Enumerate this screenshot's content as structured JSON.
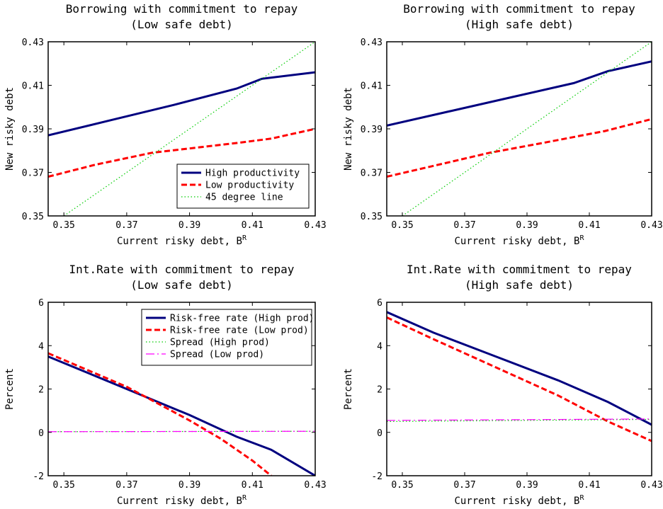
{
  "chart_data": [
    {
      "type": "line",
      "title": [
        "Borrowing with commitment to repay",
        "(Low safe debt)"
      ],
      "xlabel": "Current risky debt, B",
      "xlabel_sup": "R",
      "ylabel": "New risky debt",
      "xlim": [
        0.345,
        0.43
      ],
      "ylim": [
        0.35,
        0.43
      ],
      "xticks": [
        "0.35",
        "0.37",
        "0.39",
        "0.41",
        "0.43"
      ],
      "yticks": [
        "0.35",
        "0.37",
        "0.39",
        "0.41",
        "0.43"
      ],
      "legend": "bottom-right",
      "series": [
        {
          "name": "High productivity",
          "color": "#00007f",
          "style": "solid",
          "x": [
            0.345,
            0.365,
            0.385,
            0.405,
            0.413,
            0.43
          ],
          "y": [
            0.387,
            0.394,
            0.401,
            0.4085,
            0.413,
            0.416
          ]
        },
        {
          "name": "Low productivity",
          "color": "#ff0000",
          "style": "dashed",
          "x": [
            0.345,
            0.36,
            0.378,
            0.39,
            0.405,
            0.416,
            0.43
          ],
          "y": [
            0.368,
            0.3735,
            0.379,
            0.381,
            0.3835,
            0.3855,
            0.39
          ]
        },
        {
          "name": "45 degree line",
          "color": "#00cc00",
          "style": "dotted",
          "x": [
            0.35,
            0.43
          ],
          "y": [
            0.35,
            0.43
          ]
        }
      ]
    },
    {
      "type": "line",
      "title": [
        "Borrowing with commitment to repay",
        "(High safe debt)"
      ],
      "xlabel": "Current risky debt, B",
      "xlabel_sup": "R",
      "ylabel": "New risky debt",
      "xlim": [
        0.345,
        0.43
      ],
      "ylim": [
        0.35,
        0.43
      ],
      "xticks": [
        "0.35",
        "0.37",
        "0.39",
        "0.41",
        "0.43"
      ],
      "yticks": [
        "0.35",
        "0.37",
        "0.39",
        "0.41",
        "0.43"
      ],
      "legend": "none",
      "series": [
        {
          "name": "High productivity",
          "color": "#00007f",
          "style": "solid",
          "x": [
            0.345,
            0.365,
            0.385,
            0.405,
            0.416,
            0.43
          ],
          "y": [
            0.3915,
            0.398,
            0.4045,
            0.411,
            0.4165,
            0.421
          ]
        },
        {
          "name": "Low productivity",
          "color": "#ff0000",
          "style": "dashed",
          "x": [
            0.345,
            0.36,
            0.378,
            0.395,
            0.415,
            0.43
          ],
          "y": [
            0.368,
            0.373,
            0.379,
            0.3835,
            0.389,
            0.3945
          ]
        },
        {
          "name": "45 degree line",
          "color": "#00cc00",
          "style": "dotted",
          "x": [
            0.35,
            0.43
          ],
          "y": [
            0.35,
            0.43
          ]
        }
      ]
    },
    {
      "type": "line",
      "title": [
        "Int.Rate with commitment to repay",
        "(Low safe debt)"
      ],
      "xlabel": "Current risky debt, B",
      "xlabel_sup": "R",
      "ylabel": "Percent",
      "xlim": [
        0.345,
        0.43
      ],
      "ylim": [
        -2,
        6
      ],
      "xticks": [
        "0.35",
        "0.37",
        "0.39",
        "0.41",
        "0.43"
      ],
      "yticks": [
        "-2",
        "0",
        "2",
        "4",
        "6"
      ],
      "legend": "top-right",
      "series": [
        {
          "name": "Risk-free rate (High prod)",
          "color": "#00007f",
          "style": "solid",
          "x": [
            0.345,
            0.37,
            0.39,
            0.405,
            0.416,
            0.43
          ],
          "y": [
            3.5,
            2.0,
            0.8,
            -0.2,
            -0.8,
            -2.0
          ]
        },
        {
          "name": "Risk-free rate (Low prod)",
          "color": "#ff0000",
          "style": "dashed",
          "x": [
            0.345,
            0.37,
            0.39,
            0.4,
            0.41,
            0.416
          ],
          "y": [
            3.65,
            2.1,
            0.55,
            -0.3,
            -1.3,
            -2.0
          ]
        },
        {
          "name": "Spread (High prod)",
          "color": "#00cc00",
          "style": "dotted",
          "x": [
            0.345,
            0.43
          ],
          "y": [
            0.03,
            0.05
          ]
        },
        {
          "name": "Spread (Low prod)",
          "color": "#ff00ff",
          "style": "dashdot",
          "x": [
            0.345,
            0.43
          ],
          "y": [
            0.03,
            0.05
          ]
        }
      ]
    },
    {
      "type": "line",
      "title": [
        "Int.Rate with commitment to repay",
        "(High safe debt)"
      ],
      "xlabel": "Current risky debt, B",
      "xlabel_sup": "R",
      "ylabel": "Percent",
      "xlim": [
        0.345,
        0.43
      ],
      "ylim": [
        -2,
        6
      ],
      "xticks": [
        "0.35",
        "0.37",
        "0.39",
        "0.41",
        "0.43"
      ],
      "yticks": [
        "-2",
        "0",
        "2",
        "4",
        "6"
      ],
      "legend": "none",
      "series": [
        {
          "name": "Risk-free rate (High prod)",
          "color": "#00007f",
          "style": "solid",
          "x": [
            0.345,
            0.36,
            0.38,
            0.4,
            0.416,
            0.43
          ],
          "y": [
            5.55,
            4.6,
            3.5,
            2.4,
            1.4,
            0.35
          ]
        },
        {
          "name": "Risk-free rate (Low prod)",
          "color": "#ff0000",
          "style": "dashed",
          "x": [
            0.345,
            0.36,
            0.38,
            0.4,
            0.416,
            0.43
          ],
          "y": [
            5.3,
            4.3,
            3.0,
            1.7,
            0.5,
            -0.4
          ]
        },
        {
          "name": "Spread (High prod)",
          "color": "#00cc00",
          "style": "dotted",
          "x": [
            0.345,
            0.43
          ],
          "y": [
            0.5,
            0.6
          ]
        },
        {
          "name": "Spread (Low prod)",
          "color": "#ff00ff",
          "style": "dashdot",
          "x": [
            0.345,
            0.43
          ],
          "y": [
            0.55,
            0.62
          ]
        }
      ]
    }
  ]
}
